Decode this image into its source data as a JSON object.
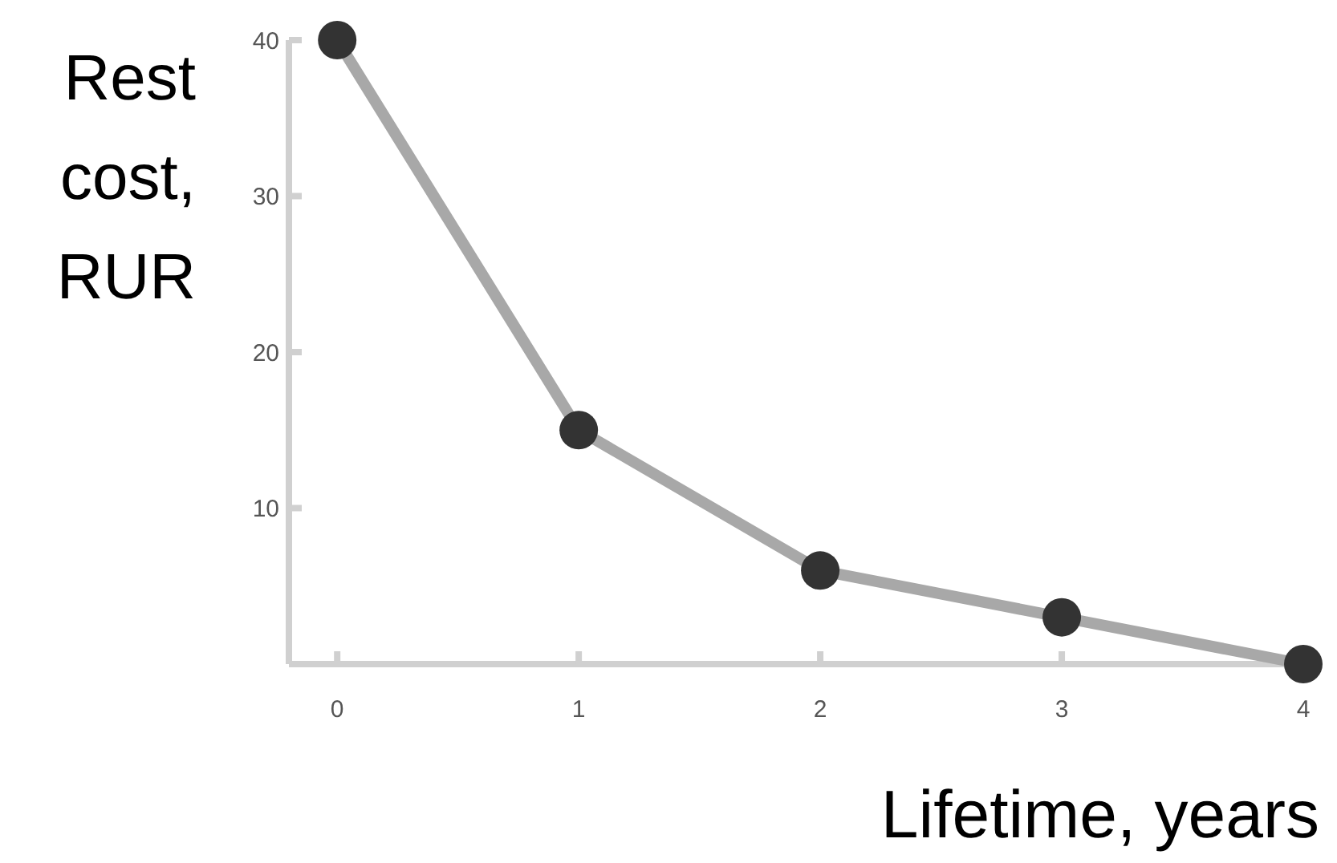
{
  "chart_data": {
    "type": "line",
    "xlabel": "Lifetime, years",
    "ylabel": "Rest cost, RUR",
    "x": [
      0,
      1,
      2,
      3,
      4
    ],
    "series": [
      {
        "color": "#a8a8a8",
        "values": [
          40,
          15,
          6,
          3,
          0
        ]
      }
    ],
    "xlim": [
      -0.2,
      4
    ],
    "xticks": [
      0,
      1,
      2,
      3,
      4
    ],
    "ylim": [
      0,
      40
    ],
    "yticks": [
      {
        "value": 0,
        "label": null
      },
      10,
      20,
      30,
      40
    ],
    "marker": "circle",
    "line_style": "solid",
    "grid": false
  }
}
